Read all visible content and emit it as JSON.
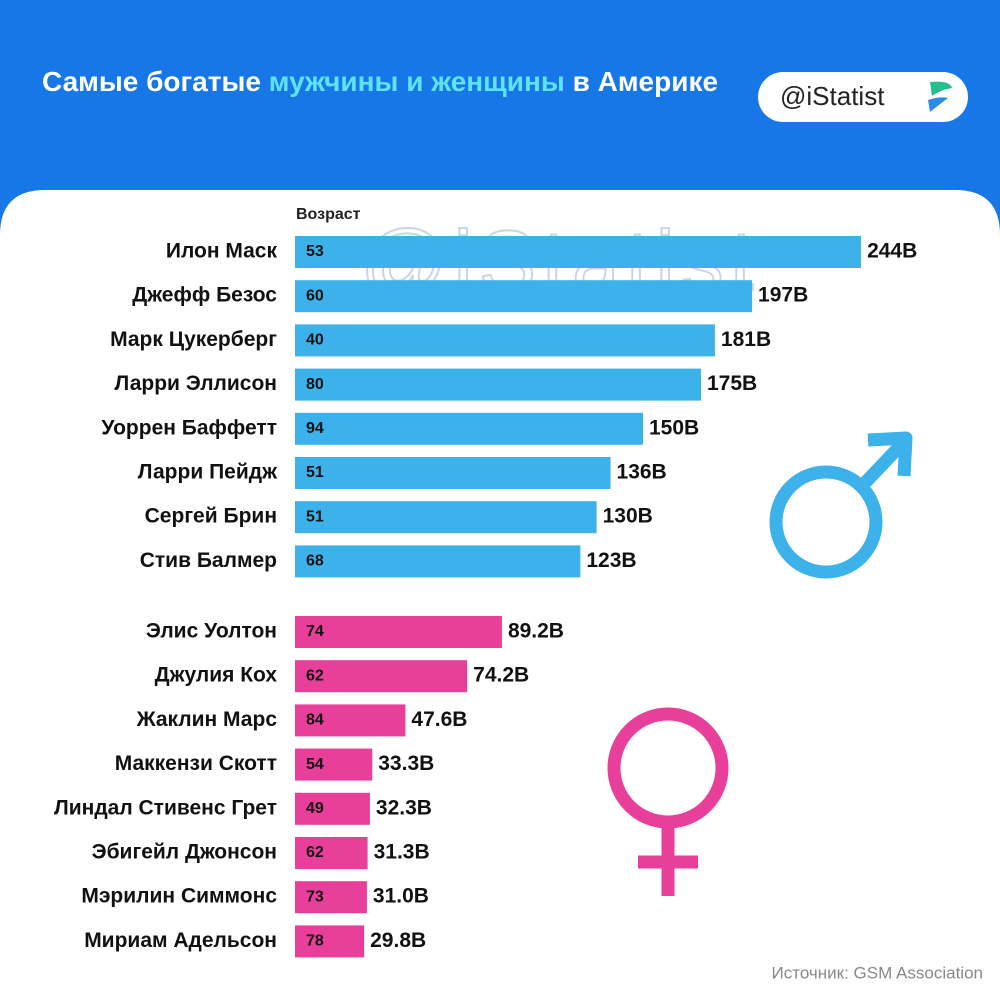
{
  "header": {
    "title_parts": [
      "Самые богатые ",
      "мужчины и женщины",
      " в Америке"
    ],
    "brand": "@iStatist"
  },
  "source": "Источник: GSM Association",
  "chart_data": [
    {
      "type": "bar",
      "orientation": "horizontal",
      "color": "#3db1ea",
      "age_title": "Возраст",
      "categories": [
        "Илон Маск",
        "Джефф Безос",
        "Марк Цукерберг",
        "Ларри Эллисон",
        "Уоррен Баффетт",
        "Ларри Пейдж",
        "Сергей Брин",
        "Стив Балмер"
      ],
      "values": [
        244,
        197,
        181,
        175,
        150,
        136,
        130,
        123
      ],
      "value_labels": [
        "244B",
        "197B",
        "181B",
        "175B",
        "150B",
        "136B",
        "130B",
        "123B"
      ],
      "ages": [
        53,
        60,
        40,
        80,
        94,
        51,
        51,
        68
      ],
      "xlim": [
        0,
        250
      ]
    },
    {
      "type": "bar",
      "orientation": "horizontal",
      "color": "#e8409a",
      "categories": [
        "Элис Уолтон",
        "Джулия Кох",
        "Жаклин Марс",
        "Маккензи Скотт",
        "Линдал Стивенс Грет",
        "Эбигейл Джонсон",
        "Мэрилин Симмонс",
        "Мириам Адельсон"
      ],
      "values": [
        89.2,
        74.2,
        47.6,
        33.3,
        32.3,
        31.3,
        31.0,
        29.8
      ],
      "value_labels": [
        "89.2B",
        "74.2B",
        "47.6B",
        "33.3B",
        "32.3B",
        "31.3B",
        "31.0B",
        "29.8B"
      ],
      "ages": [
        74,
        62,
        84,
        54,
        49,
        62,
        73,
        78
      ],
      "xlim": [
        0,
        250
      ]
    }
  ]
}
